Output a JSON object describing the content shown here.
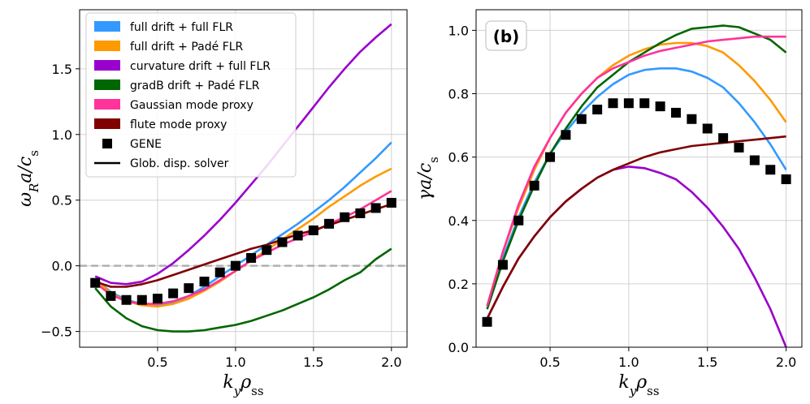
{
  "chart_data": [
    {
      "type": "line",
      "panel": "a",
      "xlabel": "k_y ρ_ss",
      "ylabel": "ω_R a / c_s",
      "xlim": [
        0.0,
        2.1
      ],
      "ylim": [
        -0.62,
        1.95
      ],
      "xticks": [
        0.5,
        1.0,
        1.5,
        2.0
      ],
      "yticks": [
        -0.5,
        0.0,
        0.5,
        1.0,
        1.5
      ],
      "xtick_labels": [
        "0.5",
        "1.0",
        "1.5",
        "2.0"
      ],
      "ytick_labels": [
        "−0.5",
        "0.0",
        "0.5",
        "1.0",
        "1.5"
      ],
      "grid": true,
      "reference_line": {
        "y": 0.0,
        "style": "dashed",
        "color": "#b0b0b0"
      },
      "legend": {
        "placement": "top-left"
      },
      "x": [
        0.1,
        0.2,
        0.3,
        0.4,
        0.5,
        0.6,
        0.7,
        0.8,
        0.9,
        1.0,
        1.1,
        1.2,
        1.3,
        1.4,
        1.5,
        1.6,
        1.7,
        1.8,
        1.9,
        2.0
      ],
      "series": [
        {
          "name": "full drift + full FLR",
          "color": "#3399ff",
          "values": [
            -0.1,
            -0.2,
            -0.26,
            -0.29,
            -0.3,
            -0.28,
            -0.23,
            -0.16,
            -0.08,
            0.0,
            0.08,
            0.16,
            0.24,
            0.32,
            0.41,
            0.5,
            0.6,
            0.71,
            0.82,
            0.94
          ]
        },
        {
          "name": "full drift + Padé FLR",
          "color": "#ff9900",
          "values": [
            -0.1,
            -0.21,
            -0.27,
            -0.3,
            -0.31,
            -0.29,
            -0.25,
            -0.19,
            -0.12,
            -0.04,
            0.04,
            0.12,
            0.2,
            0.28,
            0.36,
            0.45,
            0.53,
            0.61,
            0.68,
            0.74
          ]
        },
        {
          "name": "curvature drift + full FLR",
          "color": "#9900cc",
          "values": [
            -0.08,
            -0.13,
            -0.14,
            -0.12,
            -0.06,
            0.02,
            0.12,
            0.23,
            0.35,
            0.48,
            0.62,
            0.76,
            0.91,
            1.06,
            1.21,
            1.36,
            1.5,
            1.63,
            1.74,
            1.84
          ]
        },
        {
          "name": "gradB drift + Padé FLR",
          "color": "#006600",
          "values": [
            -0.17,
            -0.31,
            -0.4,
            -0.46,
            -0.49,
            -0.5,
            -0.5,
            -0.49,
            -0.47,
            -0.45,
            -0.42,
            -0.38,
            -0.34,
            -0.29,
            -0.24,
            -0.18,
            -0.11,
            -0.05,
            0.05,
            0.13
          ]
        },
        {
          "name": "Gaussian mode proxy",
          "color": "#ff3399",
          "values": [
            -0.13,
            -0.22,
            -0.27,
            -0.29,
            -0.29,
            -0.27,
            -0.23,
            -0.18,
            -0.11,
            -0.04,
            0.04,
            0.1,
            0.16,
            0.21,
            0.26,
            0.32,
            0.37,
            0.43,
            0.5,
            0.57
          ]
        },
        {
          "name": "flute mode proxy",
          "color": "#800000",
          "values": [
            -0.12,
            -0.16,
            -0.16,
            -0.14,
            -0.11,
            -0.07,
            -0.03,
            0.01,
            0.05,
            0.09,
            0.13,
            0.16,
            0.2,
            0.24,
            0.27,
            0.31,
            0.35,
            0.39,
            0.43,
            0.47
          ]
        }
      ],
      "markers": {
        "name": "GENE",
        "marker": "square",
        "color": "#000000",
        "values": [
          -0.13,
          -0.23,
          -0.26,
          -0.26,
          -0.25,
          -0.21,
          -0.17,
          -0.12,
          -0.05,
          0.0,
          0.06,
          0.12,
          0.18,
          0.23,
          0.27,
          0.32,
          0.37,
          0.4,
          0.44,
          0.48
        ]
      },
      "legend_only": [
        {
          "name": "Glob. disp. solver",
          "color": "#000000",
          "style": "line"
        }
      ]
    },
    {
      "type": "line",
      "panel": "b",
      "panel_tag": "(b)",
      "xlabel": "k_y ρ_ss",
      "ylabel": "γ a / c_s",
      "xlim": [
        0.03,
        2.1
      ],
      "ylim": [
        0.0,
        1.065
      ],
      "xticks": [
        0.5,
        1.0,
        1.5,
        2.0
      ],
      "yticks": [
        0.0,
        0.2,
        0.4,
        0.6,
        0.8,
        1.0
      ],
      "xtick_labels": [
        "0.5",
        "1.0",
        "1.5",
        "2.0"
      ],
      "ytick_labels": [
        "0.0",
        "0.2",
        "0.4",
        "0.6",
        "0.8",
        "1.0"
      ],
      "grid": true,
      "x": [
        0.1,
        0.2,
        0.3,
        0.4,
        0.5,
        0.6,
        0.7,
        0.8,
        0.9,
        1.0,
        1.1,
        1.2,
        1.3,
        1.4,
        1.5,
        1.6,
        1.7,
        1.8,
        1.9,
        2.0
      ],
      "series": [
        {
          "name": "full drift + full FLR",
          "color": "#3399ff",
          "values": [
            0.13,
            0.28,
            0.41,
            0.52,
            0.61,
            0.68,
            0.74,
            0.79,
            0.83,
            0.86,
            0.875,
            0.88,
            0.88,
            0.87,
            0.85,
            0.82,
            0.77,
            0.71,
            0.64,
            0.56
          ]
        },
        {
          "name": "full drift + Padé FLR",
          "color": "#ff9900",
          "values": [
            0.13,
            0.3,
            0.44,
            0.56,
            0.66,
            0.74,
            0.8,
            0.85,
            0.89,
            0.92,
            0.94,
            0.955,
            0.96,
            0.96,
            0.95,
            0.93,
            0.89,
            0.84,
            0.78,
            0.71
          ]
        },
        {
          "name": "curvature drift + full FLR",
          "color": "#9900cc",
          "values": [
            0.09,
            0.19,
            0.28,
            0.35,
            0.41,
            0.46,
            0.5,
            0.535,
            0.56,
            0.57,
            0.565,
            0.55,
            0.53,
            0.49,
            0.44,
            0.38,
            0.31,
            0.22,
            0.12,
            0.0
          ]
        },
        {
          "name": "gradB drift + Padé FLR",
          "color": "#006600",
          "values": [
            0.12,
            0.27,
            0.4,
            0.51,
            0.61,
            0.69,
            0.76,
            0.82,
            0.86,
            0.9,
            0.93,
            0.96,
            0.985,
            1.005,
            1.01,
            1.015,
            1.01,
            0.99,
            0.97,
            0.93
          ]
        },
        {
          "name": "Gaussian mode proxy",
          "color": "#ff3399",
          "values": [
            0.13,
            0.3,
            0.45,
            0.57,
            0.66,
            0.74,
            0.8,
            0.85,
            0.88,
            0.9,
            0.92,
            0.935,
            0.945,
            0.955,
            0.965,
            0.97,
            0.975,
            0.98,
            0.98,
            0.98
          ]
        },
        {
          "name": "flute mode proxy",
          "color": "#800000",
          "values": [
            0.09,
            0.19,
            0.28,
            0.35,
            0.41,
            0.46,
            0.5,
            0.535,
            0.56,
            0.58,
            0.6,
            0.615,
            0.625,
            0.635,
            0.64,
            0.645,
            0.65,
            0.655,
            0.66,
            0.665
          ]
        }
      ],
      "markers": {
        "name": "GENE",
        "marker": "square",
        "color": "#000000",
        "values": [
          0.08,
          0.26,
          0.4,
          0.51,
          0.6,
          0.67,
          0.72,
          0.75,
          0.77,
          0.77,
          0.77,
          0.76,
          0.74,
          0.72,
          0.69,
          0.66,
          0.63,
          0.59,
          0.56,
          0.53
        ]
      }
    }
  ]
}
